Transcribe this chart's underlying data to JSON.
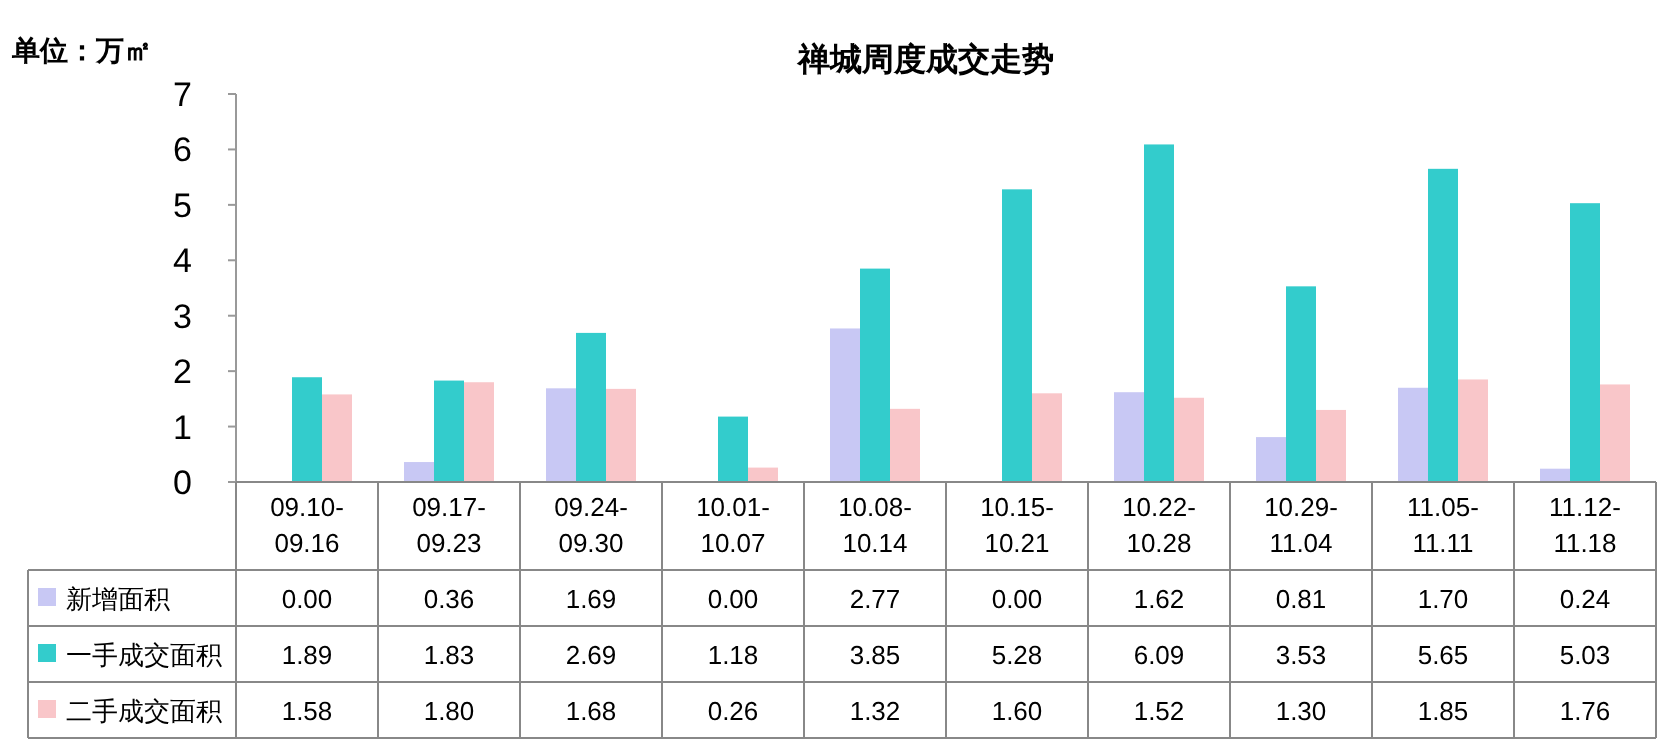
{
  "chart_data": {
    "type": "bar",
    "title": "禅城周度成交走势",
    "ylabel": "单位：万㎡",
    "categories": [
      "09.10-09.16",
      "09.17-09.23",
      "09.24-09.30",
      "10.01-10.07",
      "10.08-10.14",
      "10.15-10.21",
      "10.22-10.28",
      "10.29-11.04",
      "11.05-11.11",
      "11.12-11.18"
    ],
    "series": [
      {
        "name": "新增面积",
        "color": "#c8c8f4",
        "values": [
          0.0,
          0.36,
          1.69,
          0.0,
          2.77,
          0.0,
          1.62,
          0.81,
          1.7,
          0.24
        ],
        "value_labels": [
          "0.00",
          "0.36",
          "1.69",
          "0.00",
          "2.77",
          "0.00",
          "1.62",
          "0.81",
          "1.70",
          "0.24"
        ]
      },
      {
        "name": "一手成交面积",
        "color": "#33cccc",
        "values": [
          1.89,
          1.83,
          2.69,
          1.18,
          3.85,
          5.28,
          6.09,
          3.53,
          5.65,
          5.03
        ],
        "value_labels": [
          "1.89",
          "1.83",
          "2.69",
          "1.18",
          "3.85",
          "5.28",
          "6.09",
          "3.53",
          "5.65",
          "5.03"
        ]
      },
      {
        "name": "二手成交面积",
        "color": "#f9c6c9",
        "values": [
          1.58,
          1.8,
          1.68,
          0.26,
          1.32,
          1.6,
          1.52,
          1.3,
          1.85,
          1.76
        ],
        "value_labels": [
          "1.58",
          "1.80",
          "1.68",
          "0.26",
          "1.32",
          "1.60",
          "1.52",
          "1.30",
          "1.85",
          "1.76"
        ]
      }
    ],
    "ylim": [
      0,
      7
    ],
    "yticks": [
      0,
      1,
      2,
      3,
      4,
      5,
      6,
      7
    ],
    "legend": "bottom",
    "grid": false
  }
}
